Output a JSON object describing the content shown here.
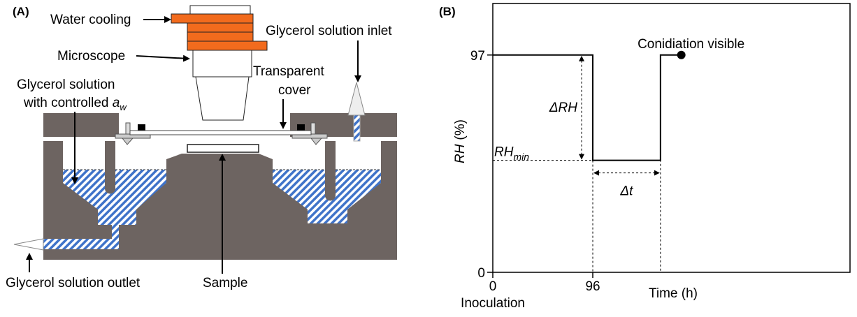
{
  "panels": {
    "a": "(A)",
    "b": "(B)"
  },
  "diagram": {
    "labels": {
      "water_cooling": "Water cooling",
      "microscope": "Microscope",
      "inlet": "Glycerol solution inlet",
      "cover": [
        "Transparent",
        "cover"
      ],
      "solution": {
        "line1": "Glycerol solution",
        "line2": "with controlled",
        "var": "a",
        "sub": "w"
      },
      "outlet": "Glycerol solution outlet",
      "sample": "Sample"
    }
  },
  "chart_data": {
    "type": "line",
    "x": [
      0,
      96,
      96,
      161,
      161,
      181
    ],
    "series": [
      {
        "color": "#000000",
        "values": [
          97,
          97,
          50,
          50,
          97,
          97
        ]
      }
    ],
    "end_marker": true,
    "xlim": [
      0,
      343
    ],
    "ylim": [
      0,
      120
    ],
    "xticks": [
      0,
      96
    ],
    "yticks": [
      0,
      97
    ],
    "xlabel": "Time (h)",
    "x_note": "Inoculation",
    "ylabel": {
      "main": "RH",
      "unit": "(%)"
    },
    "annotations": {
      "delta_rh": "ΔRH",
      "rh_min": {
        "main": "RH",
        "sub": "min"
      },
      "delta_t": "Δt",
      "end": "Conidiation visible"
    }
  }
}
